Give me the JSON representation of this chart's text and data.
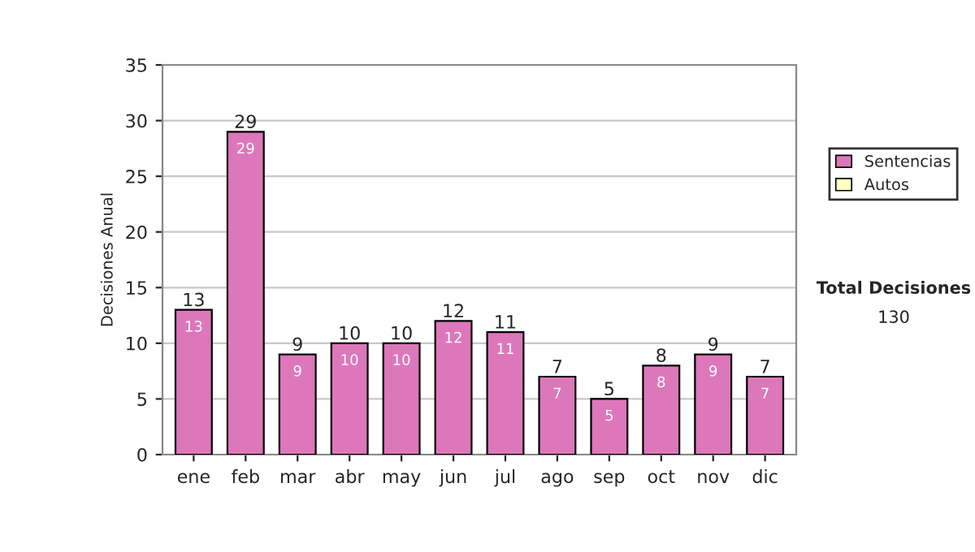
{
  "chart_data": {
    "type": "bar",
    "ylabel": "Decisiones Anual",
    "categories": [
      "ene",
      "feb",
      "mar",
      "abr",
      "may",
      "jun",
      "jul",
      "ago",
      "sep",
      "oct",
      "nov",
      "dic"
    ],
    "stacked": true,
    "series": [
      {
        "name": "Sentencias",
        "color": "#dd77bb",
        "values": [
          13,
          29,
          9,
          10,
          10,
          12,
          11,
          7,
          5,
          8,
          9,
          7
        ],
        "value_labels": [
          "13",
          "29",
          "9",
          "10",
          "10",
          "12",
          "11",
          "7",
          "5",
          "8",
          "9",
          "7"
        ]
      },
      {
        "name": "Autos",
        "color": "#ffffc0",
        "values": [
          null,
          null,
          null,
          null,
          null,
          null,
          null,
          null,
          null,
          null,
          null,
          null
        ]
      }
    ],
    "totals": [
      "13",
      "29",
      "9",
      "10",
      "10",
      "12",
      "11",
      "7",
      "5",
      "8",
      "9",
      "7"
    ],
    "ylim": [
      0,
      35
    ],
    "yticks": [
      0,
      5,
      10,
      15,
      20,
      25,
      30,
      35
    ],
    "grid": "y",
    "legend": "right",
    "annotations": [
      "Total Decisiones",
      "130"
    ]
  }
}
